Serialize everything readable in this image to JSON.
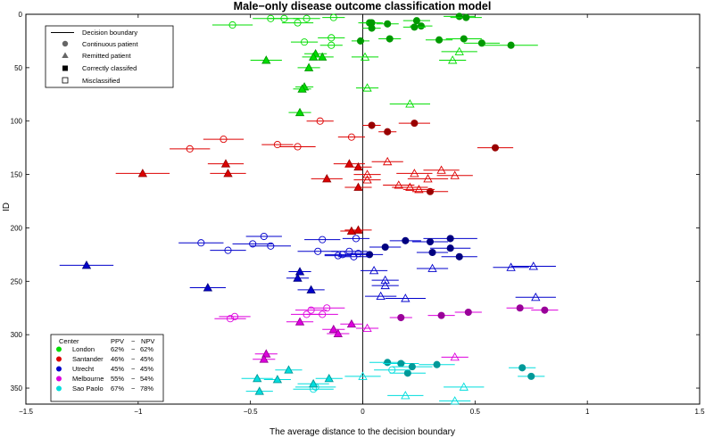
{
  "chart_data": {
    "type": "scatter",
    "title": "Male−only disease outcome classification model",
    "xlabel": "The average distance to the decision boundary",
    "ylabel": "ID",
    "xlim": [
      -1.5,
      1.5
    ],
    "ylim": [
      0,
      365
    ],
    "y_inverted": true,
    "grid": false,
    "xticks": [
      -1.5,
      -1,
      -0.5,
      0,
      0.5,
      1,
      1.5
    ],
    "xtick_labels": [
      "−1.5",
      "−1",
      "−0.5",
      "0",
      "0.5",
      "1",
      "1.5"
    ],
    "yticks": [
      0,
      50,
      100,
      150,
      200,
      250,
      300,
      350
    ],
    "yrange_visible": [
      0,
      365
    ],
    "decision_boundary_x": 0,
    "legend_symbols": {
      "title_line": "Decision boundary",
      "items": [
        {
          "marker": "circle",
          "label": "Continuous patient"
        },
        {
          "marker": "triangle",
          "label": "Remitted patient"
        },
        {
          "marker": "square-filled",
          "label": "Correctly classifed"
        },
        {
          "marker": "square-open",
          "label": "Misclassified"
        }
      ]
    },
    "legend_centers": {
      "headers": [
        "Center",
        "PPV",
        "−",
        "NPV"
      ],
      "rows": [
        {
          "name": "London",
          "ppv": "62%",
          "sep": "−",
          "npv": "62%",
          "color": "#00dd00"
        },
        {
          "name": "Santander",
          "ppv": "46%",
          "sep": "−",
          "npv": "45%",
          "color": "#dd0000"
        },
        {
          "name": "Utrecht",
          "ppv": "45%",
          "sep": "−",
          "npv": "45%",
          "color": "#0000cc"
        },
        {
          "name": "Melbourne",
          "ppv": "55%",
          "sep": "−",
          "npv": "54%",
          "color": "#dd00dd"
        },
        {
          "name": "Sao Paolo",
          "ppv": "67%",
          "sep": "−",
          "npv": "78%",
          "color": "#00dddd"
        }
      ]
    },
    "series": [
      {
        "name": "London",
        "color": "#00dd00",
        "dark": "#009900",
        "points": [
          [
            0.43,
            2,
            "c",
            1,
            0.07
          ],
          [
            0.46,
            3,
            "c",
            1,
            0.07
          ],
          [
            0.24,
            6,
            "c",
            1,
            0.06
          ],
          [
            0.03,
            8,
            "c",
            1,
            0.05
          ],
          [
            0.04,
            8,
            "c",
            1,
            0.05
          ],
          [
            0.11,
            9,
            "c",
            1,
            0.05
          ],
          [
            0.26,
            11,
            "c",
            1,
            0.05
          ],
          [
            0.04,
            13,
            "c",
            1,
            0.04
          ],
          [
            0.23,
            12,
            "c",
            1,
            0.05
          ],
          [
            0.45,
            23,
            "c",
            1,
            0.08
          ],
          [
            0.34,
            24,
            "c",
            1,
            0.06
          ],
          [
            0.12,
            23,
            "c",
            1,
            0.05
          ],
          [
            0.53,
            27,
            "c",
            1,
            0.08
          ],
          [
            0.66,
            29,
            "c",
            1,
            0.12
          ],
          [
            -0.01,
            25,
            "c",
            1,
            0.04
          ],
          [
            -0.13,
            3,
            "c",
            0,
            0.05
          ],
          [
            -0.25,
            4,
            "c",
            0,
            0.06
          ],
          [
            -0.35,
            4,
            "c",
            0,
            0.07
          ],
          [
            -0.41,
            4,
            "c",
            0,
            0.08
          ],
          [
            -0.29,
            8,
            "c",
            0,
            0.07
          ],
          [
            -0.58,
            10,
            "c",
            0,
            0.09
          ],
          [
            -0.14,
            22,
            "c",
            0,
            0.06
          ],
          [
            -0.26,
            26,
            "c",
            0,
            0.06
          ],
          [
            -0.14,
            29,
            "c",
            0,
            0.05
          ],
          [
            -0.43,
            43,
            "t",
            1,
            0.07
          ],
          [
            -0.21,
            37,
            "t",
            1,
            0.05
          ],
          [
            -0.18,
            40,
            "t",
            1,
            0.05
          ],
          [
            -0.22,
            40,
            "t",
            1,
            0.05
          ],
          [
            -0.24,
            50,
            "t",
            1,
            0.05
          ],
          [
            -0.26,
            68,
            "t",
            1,
            0.04
          ],
          [
            -0.27,
            70,
            "t",
            1,
            0.04
          ],
          [
            -0.28,
            92,
            "t",
            1,
            0.05
          ],
          [
            0.01,
            40,
            "t",
            0,
            0.06
          ],
          [
            0.43,
            35,
            "t",
            0,
            0.08
          ],
          [
            0.4,
            43,
            "t",
            0,
            0.06
          ],
          [
            0.02,
            69,
            "t",
            0,
            0.05
          ],
          [
            0.21,
            84,
            "t",
            0,
            0.09
          ]
        ]
      },
      {
        "name": "Santander",
        "color": "#dd0000",
        "dark": "#990000",
        "points": [
          [
            0.23,
            102,
            "c",
            1,
            0.07
          ],
          [
            0.04,
            104,
            "c",
            1,
            0.04
          ],
          [
            0.11,
            110,
            "c",
            1,
            0.04
          ],
          [
            0.59,
            125,
            "c",
            1,
            0.08
          ],
          [
            0.3,
            166,
            "c",
            1,
            0.08
          ],
          [
            -0.19,
            100,
            "c",
            0,
            0.06
          ],
          [
            -0.05,
            115,
            "c",
            0,
            0.06
          ],
          [
            -0.62,
            117,
            "c",
            0,
            0.09
          ],
          [
            -0.38,
            122,
            "c",
            0,
            0.07
          ],
          [
            -0.29,
            124,
            "c",
            0,
            0.08
          ],
          [
            -0.77,
            126,
            "c",
            0,
            0.09
          ],
          [
            -0.61,
            140,
            "t",
            1,
            0.08
          ],
          [
            -0.06,
            140,
            "t",
            1,
            0.07
          ],
          [
            -0.02,
            143,
            "t",
            1,
            0.06
          ],
          [
            -0.6,
            149,
            "t",
            1,
            0.08
          ],
          [
            -0.98,
            149,
            "t",
            1,
            0.12
          ],
          [
            -0.16,
            154,
            "t",
            1,
            0.07
          ],
          [
            -0.02,
            162,
            "t",
            1,
            0.06
          ],
          [
            0.11,
            138,
            "t",
            0,
            0.07
          ],
          [
            0.35,
            146,
            "t",
            0,
            0.08
          ],
          [
            0.23,
            149,
            "t",
            0,
            0.08
          ],
          [
            0.02,
            150,
            "t",
            0,
            0.06
          ],
          [
            0.41,
            151,
            "t",
            0,
            0.08
          ],
          [
            0.29,
            154,
            "t",
            0,
            0.09
          ],
          [
            0.02,
            155,
            "t",
            0,
            0.06
          ],
          [
            0.16,
            160,
            "t",
            0,
            0.07
          ],
          [
            0.21,
            162,
            "t",
            0,
            0.08
          ],
          [
            0.25,
            164,
            "t",
            0,
            0.07
          ],
          [
            -0.02,
            202,
            "t",
            1,
            0.06
          ],
          [
            -0.05,
            203,
            "t",
            1,
            0.05
          ]
        ]
      },
      {
        "name": "Utrecht",
        "color": "#0000cc",
        "dark": "#000080",
        "points": [
          [
            0.39,
            210,
            "c",
            1,
            0.12
          ],
          [
            0.19,
            212,
            "c",
            1,
            0.07
          ],
          [
            0.3,
            213,
            "c",
            1,
            0.08
          ],
          [
            0.39,
            219,
            "c",
            1,
            0.09
          ],
          [
            0.1,
            218,
            "c",
            1,
            0.07
          ],
          [
            0.31,
            223,
            "c",
            1,
            0.07
          ],
          [
            0.43,
            227,
            "c",
            1,
            0.08
          ],
          [
            0.03,
            225,
            "c",
            1,
            0.06
          ],
          [
            -0.44,
            208,
            "c",
            0,
            0.08
          ],
          [
            -0.18,
            211,
            "c",
            0,
            0.08
          ],
          [
            -0.03,
            210,
            "c",
            0,
            0.06
          ],
          [
            -0.72,
            214,
            "c",
            0,
            0.1
          ],
          [
            -0.49,
            215,
            "c",
            0,
            0.09
          ],
          [
            -0.41,
            217,
            "c",
            0,
            0.09
          ],
          [
            -0.6,
            221,
            "c",
            0,
            0.08
          ],
          [
            -0.2,
            222,
            "c",
            0,
            0.09
          ],
          [
            -0.06,
            222,
            "c",
            0,
            0.08
          ],
          [
            -0.09,
            225,
            "c",
            0,
            0.08
          ],
          [
            -0.11,
            226,
            "c",
            0,
            0.06
          ],
          [
            -0.04,
            227,
            "c",
            0,
            0.07
          ],
          [
            -0.02,
            224,
            "c",
            0,
            0.05
          ],
          [
            -1.23,
            235,
            "t",
            1,
            0.12
          ],
          [
            -0.28,
            241,
            "t",
            1,
            0.05
          ],
          [
            -0.29,
            247,
            "t",
            1,
            0.05
          ],
          [
            -0.23,
            258,
            "t",
            1,
            0.06
          ],
          [
            -0.69,
            256,
            "t",
            1,
            0.08
          ],
          [
            0.76,
            236,
            "t",
            0,
            0.1
          ],
          [
            0.66,
            237,
            "t",
            0,
            0.08
          ],
          [
            0.31,
            238,
            "t",
            0,
            0.07
          ],
          [
            0.05,
            240,
            "t",
            0,
            0.06
          ],
          [
            0.1,
            249,
            "t",
            0,
            0.06
          ],
          [
            0.1,
            254,
            "t",
            0,
            0.06
          ],
          [
            0.08,
            264,
            "t",
            0,
            0.07
          ],
          [
            0.77,
            265,
            "t",
            0,
            0.09
          ],
          [
            0.19,
            266,
            "t",
            0,
            0.09
          ]
        ]
      },
      {
        "name": "Melbourne",
        "color": "#dd00dd",
        "dark": "#990099",
        "points": [
          [
            0.81,
            277,
            "c",
            1,
            0.06
          ],
          [
            0.7,
            275,
            "c",
            1,
            0.06
          ],
          [
            0.47,
            279,
            "c",
            1,
            0.06
          ],
          [
            0.35,
            282,
            "c",
            1,
            0.06
          ],
          [
            0.17,
            284,
            "c",
            1,
            0.05
          ],
          [
            -0.16,
            275,
            "c",
            0,
            0.08
          ],
          [
            -0.23,
            277,
            "c",
            0,
            0.07
          ],
          [
            -0.18,
            281,
            "c",
            0,
            0.07
          ],
          [
            -0.25,
            281,
            "c",
            0,
            0.07
          ],
          [
            -0.57,
            283,
            "c",
            0,
            0.07
          ],
          [
            -0.59,
            285,
            "c",
            0,
            0.07
          ],
          [
            -0.28,
            288,
            "t",
            1,
            0.06
          ],
          [
            -0.05,
            290,
            "t",
            1,
            0.05
          ],
          [
            -0.13,
            295,
            "t",
            1,
            0.05
          ],
          [
            -0.11,
            299,
            "t",
            1,
            0.05
          ],
          [
            -0.43,
            318,
            "t",
            1,
            0.05
          ],
          [
            -0.44,
            323,
            "t",
            1,
            0.05
          ],
          [
            0.02,
            294,
            "t",
            0,
            0.05
          ],
          [
            0.41,
            321,
            "t",
            0,
            0.06
          ]
        ]
      },
      {
        "name": "Sao Paolo",
        "color": "#00dddd",
        "dark": "#009999",
        "points": [
          [
            0.71,
            331,
            "c",
            1,
            0.06
          ],
          [
            0.75,
            339,
            "c",
            1,
            0.06
          ],
          [
            0.11,
            326,
            "c",
            1,
            0.08
          ],
          [
            0.17,
            327,
            "c",
            1,
            0.08
          ],
          [
            0.22,
            330,
            "c",
            1,
            0.09
          ],
          [
            0.33,
            328,
            "c",
            1,
            0.08
          ],
          [
            0.2,
            336,
            "c",
            1,
            0.08
          ],
          [
            0.13,
            333,
            "c",
            0,
            0.08
          ],
          [
            -0.21,
            349,
            "c",
            0,
            0.09
          ],
          [
            -0.22,
            351,
            "c",
            0,
            0.09
          ],
          [
            -0.33,
            333,
            "t",
            1,
            0.06
          ],
          [
            -0.47,
            341,
            "t",
            1,
            0.07
          ],
          [
            -0.38,
            342,
            "t",
            1,
            0.06
          ],
          [
            -0.15,
            341,
            "t",
            1,
            0.06
          ],
          [
            -0.22,
            346,
            "t",
            1,
            0.07
          ],
          [
            -0.46,
            353,
            "t",
            1,
            0.06
          ],
          [
            0.0,
            339,
            "t",
            0,
            0.08
          ],
          [
            0.45,
            349,
            "t",
            0,
            0.09
          ],
          [
            0.19,
            357,
            "t",
            0,
            0.08
          ],
          [
            0.41,
            362,
            "t",
            0,
            0.07
          ]
        ]
      }
    ]
  }
}
